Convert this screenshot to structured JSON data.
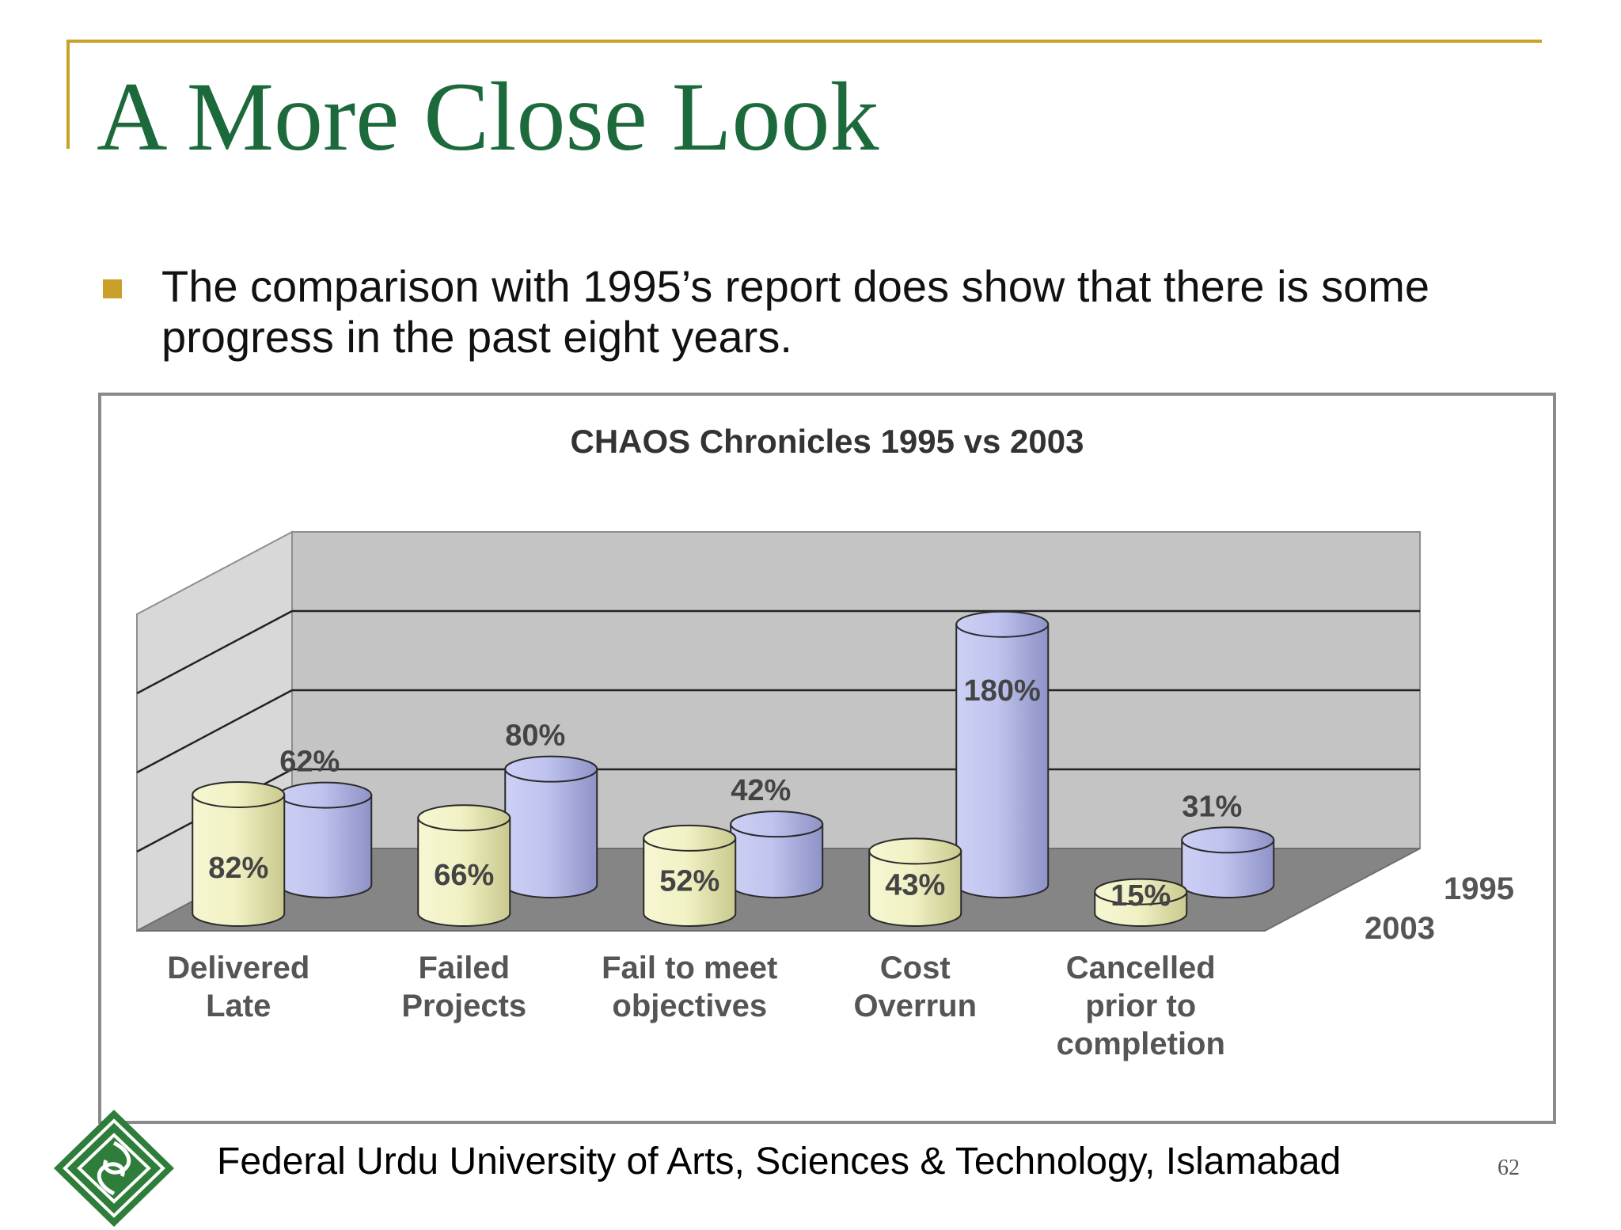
{
  "slide": {
    "title": "A More Close Look",
    "bullet": "The comparison with 1995’s report does show that there is some progress in the past eight years.",
    "footer": "Federal Urdu University of Arts, Sciences & Technology, Islamabad",
    "page_number": "62",
    "colors": {
      "title": "#1c6a3b",
      "accent": "#c8a02a",
      "series_2003": "#eeeeba",
      "series_1995": "#b9bdea"
    },
    "logo_icon": "university-seal-icon"
  },
  "chart_data": {
    "type": "bar",
    "style": "3d-cylinder",
    "title": "CHAOS Chronicles 1995 vs 2003",
    "categories": [
      [
        "Delivered",
        "Late"
      ],
      [
        "Failed",
        "Projects"
      ],
      [
        "Fail to meet",
        "objectives"
      ],
      [
        "Cost",
        "Overrun"
      ],
      [
        "Cancelled",
        "prior to",
        "completion"
      ]
    ],
    "series": [
      {
        "name": "2003",
        "values": [
          82,
          66,
          52,
          43,
          15
        ],
        "labels": [
          "82%",
          "66%",
          "52%",
          "43%",
          "15%"
        ]
      },
      {
        "name": "1995",
        "values": [
          62,
          80,
          42,
          180,
          31
        ],
        "labels": [
          "62%",
          "80%",
          "42%",
          "180%",
          "31%"
        ]
      }
    ],
    "grid": true,
    "legend": "depth-axis right"
  }
}
